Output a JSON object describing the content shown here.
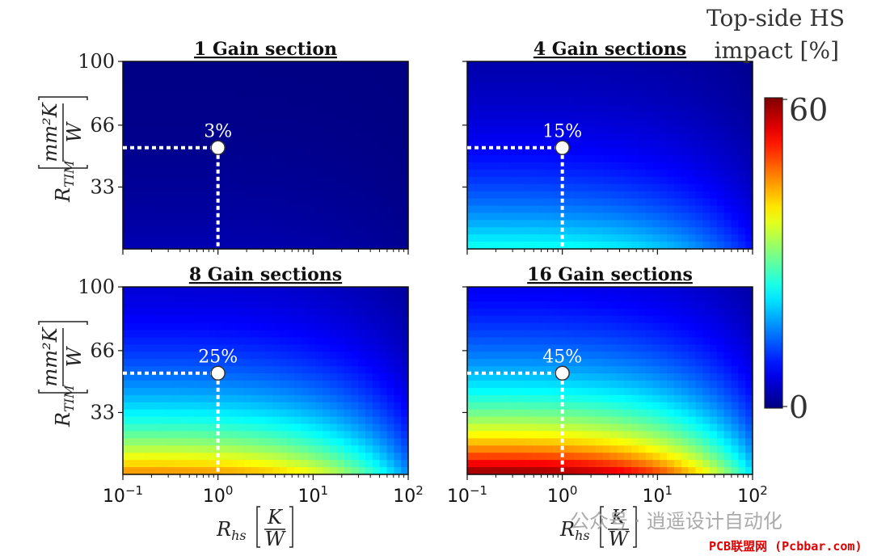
{
  "chart_data": {
    "type": "heatmap",
    "colorbar": {
      "title_lines": [
        "Top-side HS",
        "impact [%]"
      ],
      "min": 0,
      "max": 60,
      "ticks": [
        "60",
        "0"
      ],
      "colormap": "jet"
    },
    "x_axis": {
      "label_main": "R",
      "label_sub": "hs",
      "unit_num": "K",
      "unit_den": "W",
      "scale": "log",
      "range": [
        0.1,
        100
      ],
      "ticks": [
        {
          "base": "10",
          "exp": "−1"
        },
        {
          "base": "10",
          "exp": "0"
        },
        {
          "base": "10",
          "exp": "1"
        },
        {
          "base": "10",
          "exp": "2"
        }
      ]
    },
    "y_axis": {
      "label_main": "R",
      "label_sub": "TIM",
      "unit_num": "mm²K",
      "unit_den": "W",
      "range": [
        0,
        100
      ],
      "ticks": [
        "100",
        "66",
        "33"
      ]
    },
    "panels": [
      {
        "title": "1 Gain section",
        "marker": {
          "x": 1.0,
          "y": 54,
          "label": "3%"
        },
        "max_value": 3,
        "scale": 1.0
      },
      {
        "title": "4 Gain sections",
        "marker": {
          "x": 1.0,
          "y": 54,
          "label": "15%"
        },
        "max_value": 24,
        "scale": 1.0
      },
      {
        "title": "8 Gain sections",
        "marker": {
          "x": 1.0,
          "y": 54,
          "label": "25%"
        },
        "max_value": 45,
        "scale": 1.0
      },
      {
        "title": "16 Gain sections",
        "marker": {
          "x": 1.0,
          "y": 54,
          "label": "45%"
        },
        "max_value": 60,
        "scale": 1.0
      }
    ]
  },
  "watermark": {
    "text": "公众号 · 逍遥设计自动化",
    "site": "PCB联盟网 (Pcbbar.com)"
  }
}
